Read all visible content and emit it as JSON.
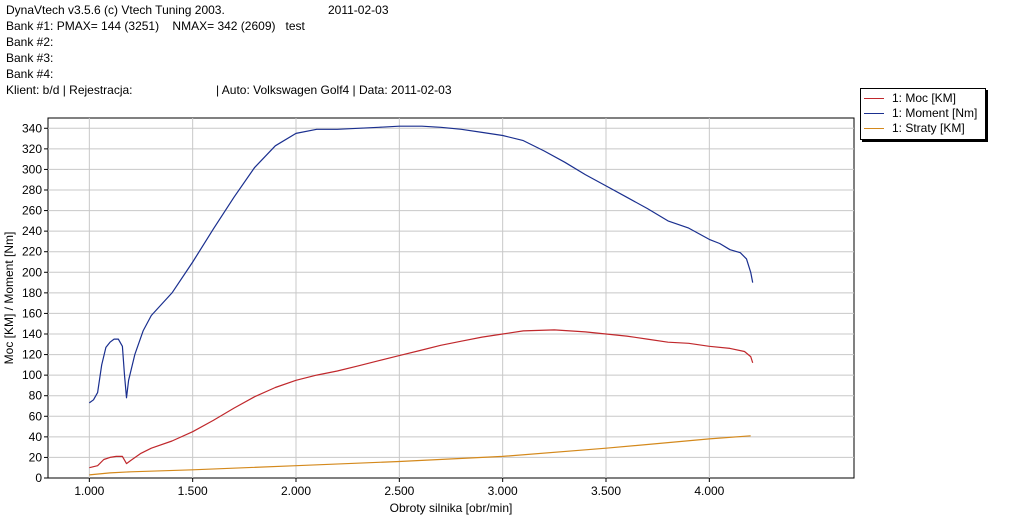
{
  "header": {
    "app": "DynaVtech v3.5.6 (c) Vtech Tuning 2003.",
    "date": "2011-02-03",
    "bank1": "Bank #1: PMAX= 144 (3251)    NMAX= 342 (2609)   test",
    "bank2": "Bank #2:",
    "bank3": "Bank #3:",
    "bank4": "Bank #4:",
    "client": "Klient: b/d | Rejestracja:",
    "auto": "| Auto: Volkswagen Golf4 | Data: 2011-02-03"
  },
  "chart_data": {
    "type": "line",
    "xlabel": "Obroty silnika [obr/min]",
    "ylabel": "Moc [KM] / Moment [Nm]",
    "xlim": [
      800,
      4700
    ],
    "ylim": [
      0,
      350
    ],
    "xticks": [
      1000,
      1500,
      2000,
      2500,
      3000,
      3500,
      4000
    ],
    "xtick_labels": [
      "1.000",
      "1.500",
      "2.000",
      "2.500",
      "3.000",
      "3.500",
      "4.000"
    ],
    "yticks": [
      0,
      20,
      40,
      60,
      80,
      100,
      120,
      140,
      160,
      180,
      200,
      220,
      240,
      260,
      280,
      300,
      320,
      340
    ],
    "grid": true,
    "legend_position": "top-right, outside plot",
    "series": [
      {
        "name": "1: Moc [KM]",
        "color": "#c0282c",
        "points": [
          [
            1000,
            10
          ],
          [
            1040,
            12
          ],
          [
            1070,
            18
          ],
          [
            1100,
            20
          ],
          [
            1130,
            21
          ],
          [
            1160,
            21
          ],
          [
            1180,
            14
          ],
          [
            1200,
            17
          ],
          [
            1250,
            24
          ],
          [
            1300,
            29
          ],
          [
            1400,
            36
          ],
          [
            1500,
            45
          ],
          [
            1600,
            56
          ],
          [
            1700,
            68
          ],
          [
            1800,
            79
          ],
          [
            1900,
            88
          ],
          [
            2000,
            95
          ],
          [
            2100,
            100
          ],
          [
            2200,
            104
          ],
          [
            2300,
            109
          ],
          [
            2400,
            114
          ],
          [
            2500,
            119
          ],
          [
            2600,
            124
          ],
          [
            2700,
            129
          ],
          [
            2800,
            133
          ],
          [
            2900,
            137
          ],
          [
            3000,
            140
          ],
          [
            3100,
            143
          ],
          [
            3250,
            144
          ],
          [
            3400,
            142
          ],
          [
            3500,
            140
          ],
          [
            3600,
            138
          ],
          [
            3700,
            135
          ],
          [
            3800,
            132
          ],
          [
            3900,
            131
          ],
          [
            4000,
            128
          ],
          [
            4100,
            126
          ],
          [
            4170,
            123
          ],
          [
            4200,
            118
          ],
          [
            4210,
            112
          ]
        ]
      },
      {
        "name": "1: Moment [Nm]",
        "color": "#1a2f8f",
        "points": [
          [
            1000,
            73
          ],
          [
            1020,
            76
          ],
          [
            1040,
            83
          ],
          [
            1060,
            110
          ],
          [
            1080,
            127
          ],
          [
            1100,
            132
          ],
          [
            1120,
            135
          ],
          [
            1140,
            135
          ],
          [
            1160,
            128
          ],
          [
            1170,
            100
          ],
          [
            1180,
            78
          ],
          [
            1190,
            95
          ],
          [
            1220,
            120
          ],
          [
            1260,
            143
          ],
          [
            1300,
            158
          ],
          [
            1400,
            180
          ],
          [
            1500,
            210
          ],
          [
            1600,
            242
          ],
          [
            1700,
            273
          ],
          [
            1800,
            302
          ],
          [
            1900,
            323
          ],
          [
            2000,
            335
          ],
          [
            2100,
            339
          ],
          [
            2200,
            339
          ],
          [
            2300,
            340
          ],
          [
            2400,
            341
          ],
          [
            2500,
            342
          ],
          [
            2609,
            342
          ],
          [
            2700,
            341
          ],
          [
            2800,
            339
          ],
          [
            2900,
            336
          ],
          [
            3000,
            333
          ],
          [
            3100,
            328
          ],
          [
            3200,
            318
          ],
          [
            3300,
            307
          ],
          [
            3400,
            295
          ],
          [
            3500,
            284
          ],
          [
            3600,
            273
          ],
          [
            3700,
            262
          ],
          [
            3800,
            250
          ],
          [
            3900,
            243
          ],
          [
            4000,
            232
          ],
          [
            4050,
            228
          ],
          [
            4100,
            222
          ],
          [
            4150,
            219
          ],
          [
            4180,
            213
          ],
          [
            4200,
            200
          ],
          [
            4210,
            190
          ]
        ]
      },
      {
        "name": "1: Straty [KM]",
        "color": "#d4891c",
        "points": [
          [
            1000,
            3
          ],
          [
            1100,
            5
          ],
          [
            1200,
            6
          ],
          [
            1500,
            8
          ],
          [
            2000,
            12
          ],
          [
            2500,
            16
          ],
          [
            3000,
            21
          ],
          [
            3500,
            29
          ],
          [
            4000,
            38
          ],
          [
            4200,
            41
          ]
        ]
      }
    ]
  }
}
